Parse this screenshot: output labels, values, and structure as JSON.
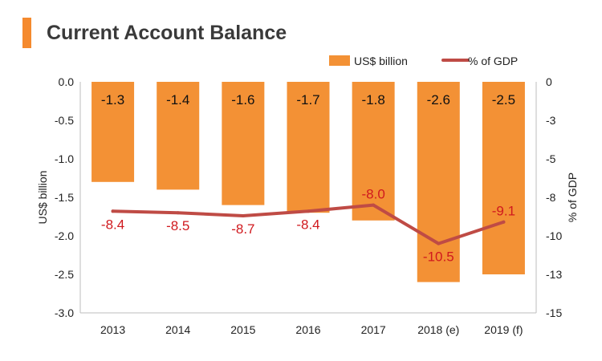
{
  "colors": {
    "title_bar": "#f58a2e",
    "bar": "#f39135",
    "line": "#bf4b45",
    "line_label": "#d0191e",
    "axis": "#bdbdbd",
    "text": "#222222"
  },
  "chart_data": {
    "type": "bar",
    "title": "Current Account Balance",
    "categories": [
      "2013",
      "2014",
      "2015",
      "2016",
      "2017",
      "2018 (e)",
      "2019 (f)"
    ],
    "series": [
      {
        "name": "US$ billion",
        "kind": "bar",
        "axis": "left",
        "values": [
          -1.3,
          -1.4,
          -1.6,
          -1.7,
          -1.8,
          -2.6,
          -2.5
        ],
        "labels": [
          "-1.3",
          "-1.4",
          "-1.6",
          "-1.7",
          "-1.8",
          "-2.6",
          "-2.5"
        ]
      },
      {
        "name": "% of GDP",
        "kind": "line",
        "axis": "right",
        "values": [
          -8.4,
          -8.5,
          -8.7,
          -8.4,
          -8.0,
          -10.5,
          -9.1
        ],
        "labels": [
          "-8.4",
          "-8.5",
          "-8.7",
          "-8.4",
          "-8.0",
          "-10.5",
          "-9.1"
        ]
      }
    ],
    "ylabel": "US$ billion",
    "ylim": [
      -3.0,
      0.0
    ],
    "yticks": [
      "0.0",
      "-0.5",
      "-1.0",
      "-1.5",
      "-2.0",
      "-2.5",
      "-3.0"
    ],
    "y2label": "% of GDP",
    "y2lim": [
      -15,
      0
    ],
    "y2ticks": [
      "0",
      "-3",
      "-5",
      "-8",
      "-10",
      "-13",
      "-15"
    ],
    "legend_position": "top-right"
  }
}
